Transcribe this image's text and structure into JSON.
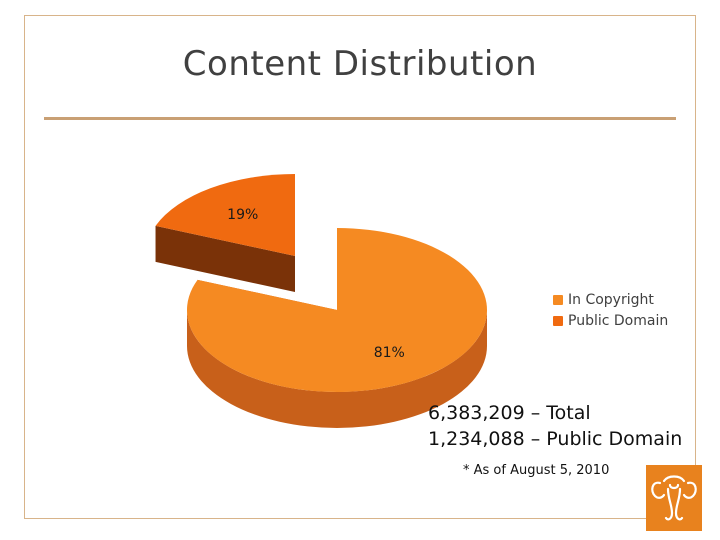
{
  "slide": {
    "title": "Content Distribution",
    "stats": {
      "total_line": "6,383,209 – Total",
      "public_line": "1,234,088 – Public Domain",
      "note": "* As of August 5, 2010"
    },
    "logo": {
      "icon": "elephant-logo-icon",
      "color": "#e8821e"
    }
  },
  "chart_data": {
    "type": "pie",
    "style": "3d-exploded",
    "slices": [
      {
        "name": "In Copyright",
        "value": 81,
        "label": "81%",
        "color": "#f58a22",
        "side_color": "#c8601a"
      },
      {
        "name": "Public Domain",
        "value": 19,
        "label": "19%",
        "color": "#f06a10",
        "side_color": "#7a3208"
      }
    ],
    "legend": {
      "position": "right",
      "entries": [
        "In Copyright",
        "Public Domain"
      ]
    },
    "colors": {
      "border": "#d8b48a",
      "rule": "#c9a074"
    }
  }
}
